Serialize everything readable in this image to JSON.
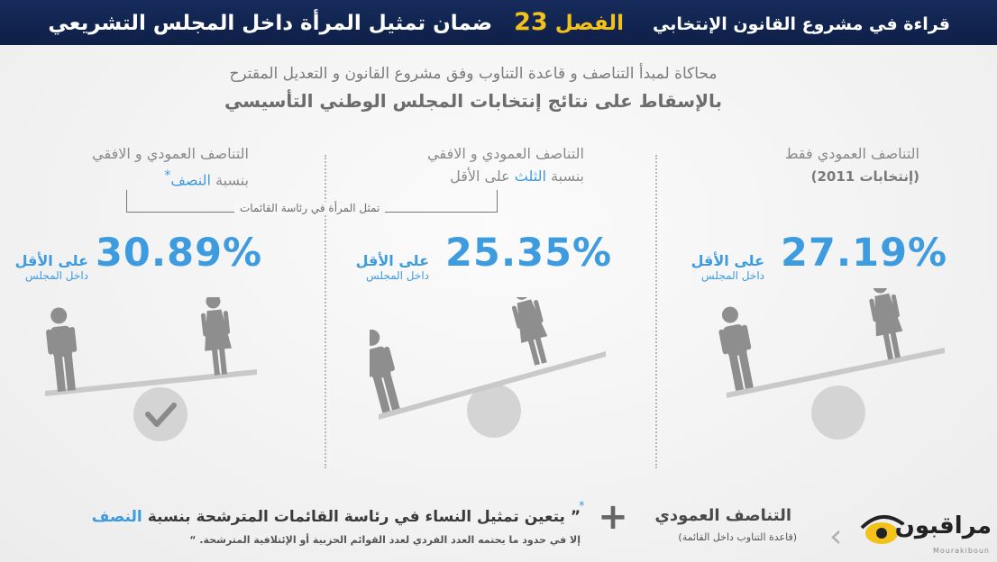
{
  "header": {
    "part1": "قراءة في مشروع القانون الإنتخابي",
    "chapter_label": "الفصل",
    "chapter_number": "23",
    "part2": "ضمان تمثيل المرأة داخل المجلس التشريعي"
  },
  "intro": {
    "line1": "محاكاة لمبدأ التناصف و قاعدة التناوب وفق مشروع القانون و التعديل المقترح",
    "line2": "بالإسقاط على نتائج إنتخابات المجلس الوطني التأسيسي"
  },
  "columns": {
    "right": {
      "title": "التناصف العمودي فقط",
      "subtitle": "(إنتخابات 2011)",
      "percent": "27.19%",
      "min_label": "على الأقل",
      "inside_label": "داخل المجلس"
    },
    "middle": {
      "title": "التناصف العمودي و الافقي",
      "ratio_prefix": "بنسبة",
      "ratio_word": "الثلث",
      "ratio_suffix": "على الأقل",
      "percent": "25.35%",
      "min_label": "على الأقل",
      "inside_label": "داخل المجلس"
    },
    "left": {
      "title": "التناصف العمودي و الافقي",
      "ratio_prefix": "بنسبة",
      "ratio_word": "النصف",
      "star": "*",
      "percent": "30.89%",
      "min_label": "على الأقل",
      "inside_label": "داخل المجلس"
    }
  },
  "bracket_label": "تمثل المرأة في رئاسة القائمات",
  "bottom": {
    "vertical_title": "التناصف العمودي",
    "vertical_subtitle": "(قاعدة التناوب داخل القائمة)",
    "plus": "+",
    "star": "*",
    "quote_main": "يتعين تمثيل النساء في رئاسة القائمات المترشحة بنسبة",
    "quote_em": "النصف",
    "quote_open": "”",
    "quote_detail": "إلا في حدود ما يحتمه العدد الفردي لعدد القوائم الحزبية أو الإئتلافية المترشحة.",
    "quote_close": "“"
  },
  "logo": {
    "name": "مراقبون",
    "latin": "Mourakiboun"
  },
  "colors": {
    "accent_blue": "#3d9be0",
    "header_navy": "#162b5c",
    "header_yellow": "#f2c21b",
    "figure_gray": "#8e8e8e",
    "logo_yellow": "#f2c21b"
  }
}
